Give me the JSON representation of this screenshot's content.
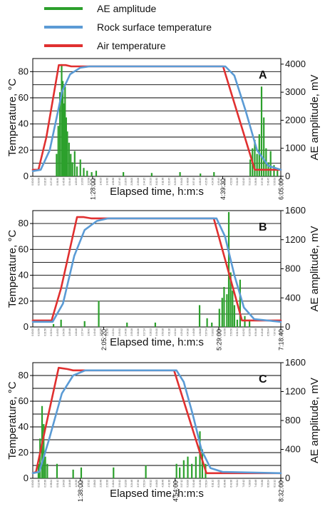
{
  "legend": [
    {
      "label": "AE amplitude",
      "color": "#2ca02c"
    },
    {
      "label": "Rock surface temperature",
      "color": "#5b9bd5"
    },
    {
      "label": "Air temperature",
      "color": "#e03030"
    }
  ],
  "chart_data": [
    {
      "type": "line",
      "panel": "A",
      "xlabel": "Elapsed time, h:m:s",
      "ylabel_left": "Temperature, °C",
      "ylabel_right": "AE amplitude, mV",
      "xlim": [
        0,
        21900
      ],
      "ylim_left": [
        0,
        90
      ],
      "ylim_right": [
        0,
        4200
      ],
      "yticks_left": [
        0,
        20,
        40,
        60,
        80
      ],
      "yticks_right": [
        0,
        1000,
        2000,
        3000,
        4000
      ],
      "x_key_ticks": [
        {
          "t": 5280,
          "label": "1:28:00"
        },
        {
          "t": 16770,
          "label": "4:39:30"
        },
        {
          "t": 21900,
          "label": "6:05:00"
        }
      ],
      "series": [
        {
          "name": "Air temperature",
          "axis": "left",
          "points": [
            [
              0,
              5
            ],
            [
              500,
              5
            ],
            [
              1200,
              30
            ],
            [
              2300,
              85
            ],
            [
              2900,
              85
            ],
            [
              3400,
              84
            ],
            [
              16800,
              84
            ],
            [
              19600,
              5
            ],
            [
              21900,
              5
            ]
          ]
        },
        {
          "name": "Rock surface temperature",
          "axis": "left",
          "points": [
            [
              0,
              4
            ],
            [
              700,
              5
            ],
            [
              1500,
              20
            ],
            [
              2600,
              65
            ],
            [
              3300,
              78
            ],
            [
              4200,
              83
            ],
            [
              5000,
              84
            ],
            [
              17000,
              84
            ],
            [
              17800,
              77
            ],
            [
              18800,
              50
            ],
            [
              19800,
              20
            ],
            [
              20800,
              8
            ],
            [
              21900,
              5
            ]
          ]
        },
        {
          "name": "AE amplitude",
          "axis": "right",
          "type": "bar",
          "points": [
            [
              2100,
              800
            ],
            [
              2250,
              1800
            ],
            [
              2400,
              3000
            ],
            [
              2550,
              4000
            ],
            [
              2650,
              3400
            ],
            [
              2750,
              2600
            ],
            [
              2850,
              3200
            ],
            [
              2950,
              2100
            ],
            [
              3050,
              1600
            ],
            [
              3200,
              1200
            ],
            [
              3350,
              800
            ],
            [
              3500,
              500
            ],
            [
              3700,
              900
            ],
            [
              3900,
              350
            ],
            [
              4200,
              600
            ],
            [
              4500,
              300
            ],
            [
              4800,
              200
            ],
            [
              5200,
              150
            ],
            [
              5600,
              200
            ],
            [
              8000,
              150
            ],
            [
              10500,
              120
            ],
            [
              13000,
              150
            ],
            [
              14800,
              100
            ],
            [
              16000,
              150
            ],
            [
              19200,
              600
            ],
            [
              19400,
              1000
            ],
            [
              19600,
              1300
            ],
            [
              19800,
              800
            ],
            [
              20000,
              1500
            ],
            [
              20200,
              3200
            ],
            [
              20400,
              2100
            ],
            [
              20600,
              1000
            ],
            [
              20800,
              500
            ],
            [
              21000,
              900
            ],
            [
              21300,
              400
            ],
            [
              21600,
              300
            ]
          ]
        }
      ]
    },
    {
      "type": "line",
      "panel": "B",
      "xlabel": "Elapsed time, h:m:s",
      "ylabel_left": "Temperature, °C",
      "ylabel_right": "AE amplitude, mV",
      "xlim": [
        0,
        26320
      ],
      "ylim_left": [
        0,
        90
      ],
      "ylim_right": [
        0,
        1600
      ],
      "yticks_left": [
        0,
        20,
        40,
        60,
        80
      ],
      "yticks_right": [
        0,
        400,
        800,
        1200,
        1600
      ],
      "x_key_ticks": [
        {
          "t": 7520,
          "label": "2:05:20"
        },
        {
          "t": 19740,
          "label": "5:29:00"
        },
        {
          "t": 26320,
          "label": "7:18:40"
        }
      ],
      "series": [
        {
          "name": "Air temperature",
          "axis": "left",
          "points": [
            [
              0,
              5
            ],
            [
              2000,
              5
            ],
            [
              3000,
              30
            ],
            [
              4700,
              85
            ],
            [
              5400,
              85
            ],
            [
              6200,
              84
            ],
            [
              19200,
              84
            ],
            [
              22200,
              5
            ],
            [
              26320,
              5
            ]
          ]
        },
        {
          "name": "Rock surface temperature",
          "axis": "left",
          "points": [
            [
              0,
              4
            ],
            [
              2100,
              4
            ],
            [
              3200,
              18
            ],
            [
              4400,
              55
            ],
            [
              5500,
              75
            ],
            [
              6800,
              82
            ],
            [
              8000,
              84
            ],
            [
              19500,
              84
            ],
            [
              20400,
              70
            ],
            [
              21400,
              40
            ],
            [
              22400,
              15
            ],
            [
              23500,
              6
            ],
            [
              26320,
              4
            ]
          ]
        },
        {
          "name": "AE amplitude",
          "axis": "right",
          "type": "bar",
          "points": [
            [
              2200,
              40
            ],
            [
              3000,
              100
            ],
            [
              5500,
              80
            ],
            [
              7000,
              360
            ],
            [
              10000,
              60
            ],
            [
              13000,
              60
            ],
            [
              17700,
              300
            ],
            [
              18500,
              120
            ],
            [
              19000,
              60
            ],
            [
              19800,
              250
            ],
            [
              20100,
              400
            ],
            [
              20300,
              550
            ],
            [
              20600,
              450
            ],
            [
              20800,
              1580
            ],
            [
              21000,
              750
            ],
            [
              21200,
              500
            ],
            [
              21400,
              300
            ],
            [
              21700,
              100
            ],
            [
              22000,
              650
            ],
            [
              22500,
              150
            ],
            [
              23000,
              100
            ]
          ]
        }
      ]
    },
    {
      "type": "line",
      "panel": "C",
      "xlabel": "Elapsed time, h:m:s",
      "ylabel_left": "Temperature, °C",
      "ylabel_right": "AE amplitude, mV",
      "xlim": [
        0,
        30720
      ],
      "ylim_left": [
        0,
        90
      ],
      "ylim_right": [
        0,
        1600
      ],
      "yticks_left": [
        0,
        20,
        40,
        60,
        80
      ],
      "yticks_right": [
        0,
        400,
        800,
        1200,
        1600
      ],
      "x_key_ticks": [
        {
          "t": 5880,
          "label": "1:38:00"
        },
        {
          "t": 17640,
          "label": "4:54:00"
        },
        {
          "t": 30720,
          "label": "8:32:00"
        }
      ],
      "series": [
        {
          "name": "Air temperature",
          "axis": "left",
          "points": [
            [
              0,
              4
            ],
            [
              400,
              5
            ],
            [
              1600,
              40
            ],
            [
              3200,
              86
            ],
            [
              4300,
              85
            ],
            [
              5000,
              84
            ],
            [
              17500,
              84
            ],
            [
              21500,
              4
            ],
            [
              30720,
              4
            ]
          ]
        },
        {
          "name": "Rock surface temperature",
          "axis": "left",
          "points": [
            [
              0,
              4
            ],
            [
              800,
              5
            ],
            [
              2000,
              30
            ],
            [
              3600,
              66
            ],
            [
              5000,
              80
            ],
            [
              6500,
              84
            ],
            [
              17800,
              84
            ],
            [
              18700,
              75
            ],
            [
              19800,
              50
            ],
            [
              20900,
              22
            ],
            [
              22000,
              8
            ],
            [
              23500,
              5
            ],
            [
              30720,
              4
            ]
          ]
        },
        {
          "name": "AE amplitude",
          "axis": "right",
          "type": "bar",
          "points": [
            [
              700,
              200
            ],
            [
              900,
              550
            ],
            [
              1150,
              1000
            ],
            [
              1350,
              750
            ],
            [
              1550,
              300
            ],
            [
              1800,
              200
            ],
            [
              3000,
              200
            ],
            [
              5000,
              120
            ],
            [
              6000,
              150
            ],
            [
              10000,
              150
            ],
            [
              14000,
              180
            ],
            [
              17800,
              200
            ],
            [
              18200,
              150
            ],
            [
              18700,
              250
            ],
            [
              19200,
              300
            ],
            [
              19700,
              200
            ],
            [
              20200,
              300
            ],
            [
              20700,
              650
            ],
            [
              21000,
              400
            ],
            [
              21400,
              200
            ]
          ]
        }
      ]
    }
  ],
  "meta_ticks_hint": ""
}
